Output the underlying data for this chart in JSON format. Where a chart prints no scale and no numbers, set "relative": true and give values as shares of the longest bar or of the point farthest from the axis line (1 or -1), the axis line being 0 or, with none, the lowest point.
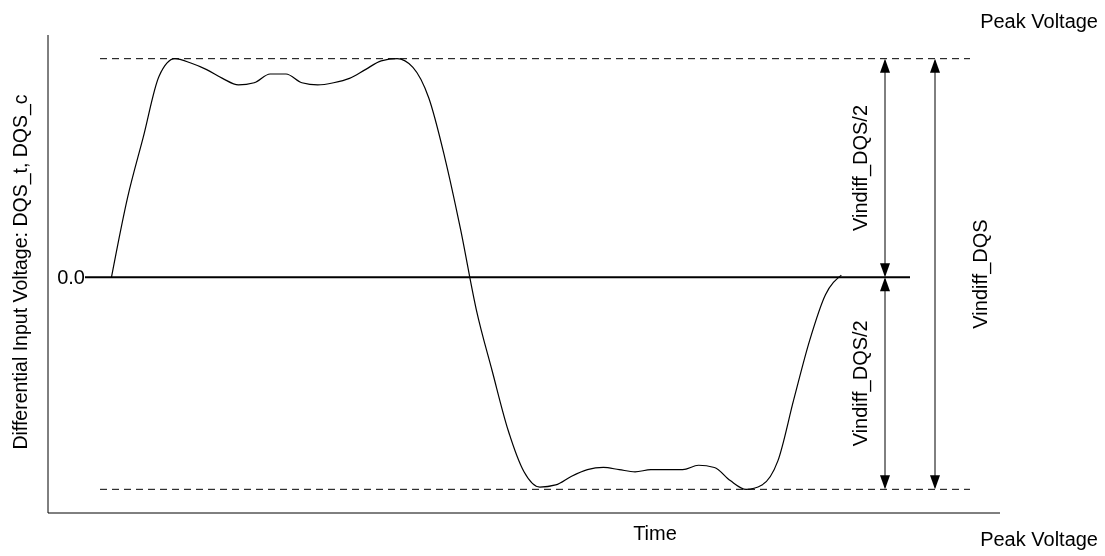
{
  "chart_data": {
    "type": "line",
    "relative": true,
    "ylabel": "Differential Input Voltage: DQS_t, DQS_c",
    "xlabel": "Time",
    "categories": [
      null,
      null,
      null,
      null,
      null,
      null,
      null,
      null,
      null,
      null,
      null,
      null,
      null,
      null,
      null,
      null,
      null,
      null,
      null,
      null,
      null,
      null,
      null,
      null,
      null,
      null,
      null,
      null,
      null,
      null,
      null,
      null,
      null,
      null,
      null,
      null,
      null,
      null,
      null,
      null,
      null,
      null,
      null,
      null,
      null,
      null,
      null,
      null,
      null,
      null,
      null,
      null,
      null,
      null,
      null,
      null,
      null,
      null,
      null,
      null,
      null
    ],
    "series": [
      {
        "color": "#000000",
        "values": [
          null,
          null,
          null,
          null,
          0,
          0.36,
          0.64,
          0.92,
          1.0,
          0.98,
          0.95,
          0.91,
          0.88,
          0.89,
          0.93,
          0.93,
          0.89,
          0.88,
          0.89,
          0.91,
          0.95,
          0.99,
          1.0,
          0.96,
          0.82,
          0.55,
          0.22,
          -0.15,
          -0.43,
          -0.7,
          -0.89,
          -0.96,
          -0.95,
          -0.91,
          -0.88,
          -0.87,
          -0.88,
          -0.89,
          -0.88,
          -0.88,
          -0.88,
          -0.86,
          -0.87,
          -0.93,
          -0.97,
          -0.95,
          -0.84,
          -0.56,
          -0.29,
          -0.08,
          0.01,
          null,
          null,
          null,
          null,
          null,
          null,
          null,
          null,
          null,
          null
        ]
      }
    ],
    "ref_lines": [
      {
        "axis": "y",
        "value": 1.0,
        "label": "Peak Voltage",
        "line_style": "dashed",
        "color": "#000000"
      },
      {
        "axis": "y",
        "value": 0,
        "label": "0.0",
        "line_style": "solid",
        "color": "#000000"
      },
      {
        "axis": "y",
        "value": -0.97,
        "label": "Peak Voltage",
        "line_style": "dashed",
        "color": "#000000"
      }
    ],
    "annotations": [
      "Vindiff_DQS/2",
      "Vindiff_DQS/2",
      "Vindiff_DQS"
    ],
    "marker": "none",
    "line_style": "solid",
    "grid": false
  }
}
